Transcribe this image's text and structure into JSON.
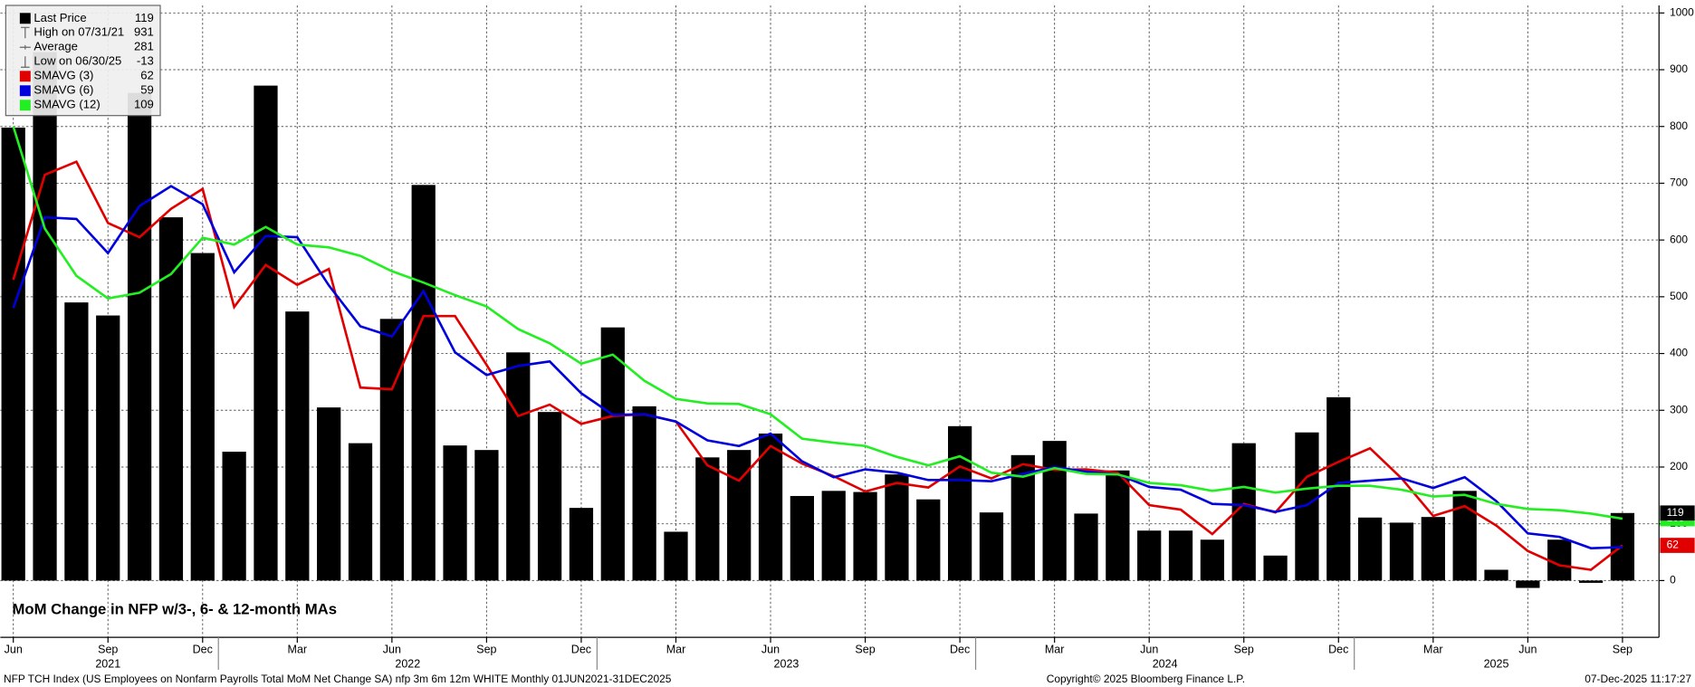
{
  "chart_data": {
    "type": "bar",
    "title": "MoM Change in NFP w/3-, 6- & 12-month MAs",
    "footer_left": "NFP TCH Index (US Employees on Nonfarm Payrolls Total MoM Net Change SA) nfp 3m 6m 12m WHITE Monthly 01JUN2021-31DEC2025",
    "footer_center": "Copyright© 2025 Bloomberg Finance L.P.",
    "footer_right": "07-Dec-2025 11:17:27",
    "categories": [
      "Jun",
      null,
      null,
      "Sep",
      null,
      null,
      "Dec",
      null,
      null,
      "Mar",
      null,
      null,
      "Jun",
      null,
      null,
      "Sep",
      null,
      null,
      "Dec",
      null,
      null,
      "Mar",
      null,
      null,
      "Jun",
      null,
      null,
      "Sep",
      null,
      null,
      "Dec",
      null,
      null,
      "Mar",
      null,
      null,
      "Jun",
      null,
      null,
      "Sep",
      null,
      null,
      "Dec",
      null,
      null,
      "Mar",
      null,
      null,
      "Jun",
      null,
      null,
      "Sep"
    ],
    "years": [
      "2021",
      "2022",
      "2023",
      "2024",
      "2025"
    ],
    "series": [
      {
        "name": "Last Price",
        "color": "#000000",
        "type": "bar",
        "values": [
          798,
          931,
          490,
          467,
          859,
          640,
          577,
          227,
          872,
          474,
          305,
          242,
          461,
          697,
          238,
          230,
          402,
          297,
          128,
          446,
          307,
          86,
          217,
          230,
          259,
          149,
          158,
          156,
          187,
          143,
          272,
          120,
          221,
          246,
          118,
          194,
          88,
          88,
          72,
          242,
          44,
          261,
          323,
          111,
          102,
          112,
          158,
          19,
          -13,
          72,
          -4,
          119
        ]
      },
      {
        "name": "SMAVG (3)",
        "color": "#e00000",
        "type": "line",
        "values": [
          530,
          715,
          738,
          630,
          605,
          655,
          690,
          482,
          556,
          521,
          549,
          340,
          337,
          466,
          466,
          380,
          290,
          310,
          276,
          290,
          293,
          280,
          203,
          176,
          237,
          206,
          184,
          157,
          172,
          164,
          201,
          180,
          205,
          195,
          196,
          190,
          133,
          125,
          82,
          135,
          120,
          183,
          209,
          233,
          180,
          114,
          131,
          97,
          52,
          27,
          19,
          62
        ]
      },
      {
        "name": "SMAVG (6)",
        "color": "#0000dd",
        "type": "line",
        "values": [
          480,
          640,
          637,
          577,
          660,
          695,
          663,
          543,
          607,
          605,
          520,
          448,
          430,
          510,
          402,
          362,
          378,
          386,
          330,
          292,
          293,
          280,
          247,
          237,
          259,
          210,
          182,
          196,
          190,
          177,
          177,
          175,
          188,
          200,
          192,
          187,
          165,
          160,
          135,
          133,
          121,
          133,
          172,
          176,
          180,
          163,
          182,
          140,
          83,
          77,
          57,
          59
        ]
      },
      {
        "name": "SMAVG (12)",
        "color": "#22ee22",
        "type": "line",
        "values": [
          800,
          620,
          537,
          497,
          507,
          540,
          604,
          592,
          623,
          592,
          587,
          572,
          545,
          525,
          503,
          483,
          443,
          418,
          382,
          398,
          352,
          320,
          312,
          311,
          293,
          250,
          243,
          237,
          218,
          203,
          219,
          190,
          183,
          198,
          188,
          187,
          172,
          168,
          158,
          165,
          155,
          162,
          167,
          167,
          160,
          148,
          151,
          135,
          126,
          124,
          118,
          109
        ]
      }
    ],
    "legend_stats": [
      {
        "label": "High on 07/31/21",
        "value": 931
      },
      {
        "label": "Average",
        "value": 281
      },
      {
        "label": "Low on 06/30/25",
        "value": -13
      }
    ],
    "ylim": [
      -100,
      1000
    ],
    "yticks": [
      0,
      100,
      200,
      300,
      400,
      500,
      600,
      700,
      800,
      900,
      1000
    ],
    "grid": true
  }
}
